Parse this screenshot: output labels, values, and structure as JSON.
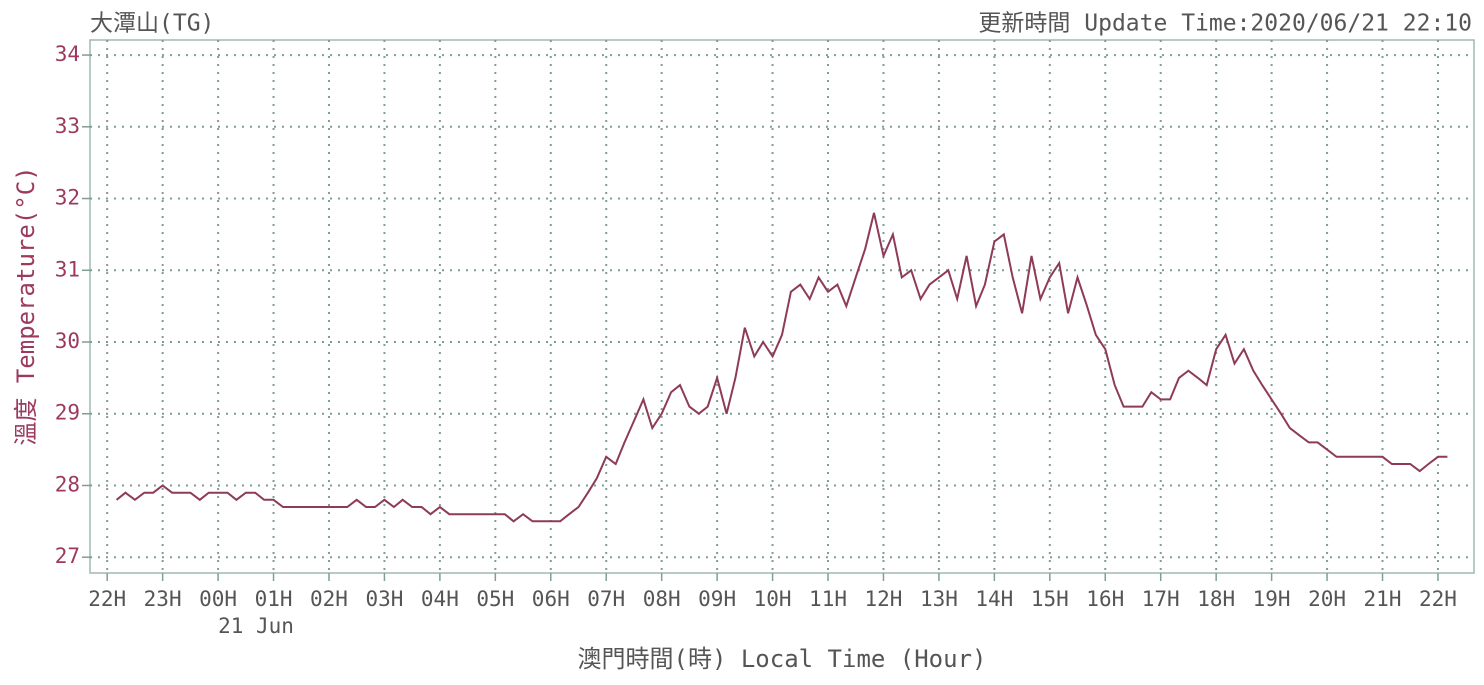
{
  "chart_data": {
    "type": "line",
    "title": "大潭山(TG)",
    "subtitle": "更新時間 Update Time:2020/06/21 22:10",
    "y_label": "溫度 Temperature(°C)",
    "x_label": "澳門時間(時) Local Time (Hour)",
    "annotation": {
      "text": "21 Jun",
      "x": 2
    },
    "xlim": [
      -0.31,
      24.65
    ],
    "xticks": [
      {
        "value": 0,
        "label": "22H"
      },
      {
        "value": 1,
        "label": "23H"
      },
      {
        "value": 2,
        "label": "00H"
      },
      {
        "value": 3,
        "label": "01H"
      },
      {
        "value": 4,
        "label": "02H"
      },
      {
        "value": 5,
        "label": "03H"
      },
      {
        "value": 6,
        "label": "04H"
      },
      {
        "value": 7,
        "label": "05H"
      },
      {
        "value": 8,
        "label": "06H"
      },
      {
        "value": 9,
        "label": "07H"
      },
      {
        "value": 10,
        "label": "08H"
      },
      {
        "value": 11,
        "label": "09H"
      },
      {
        "value": 12,
        "label": "10H"
      },
      {
        "value": 13,
        "label": "11H"
      },
      {
        "value": 14,
        "label": "12H"
      },
      {
        "value": 15,
        "label": "13H"
      },
      {
        "value": 16,
        "label": "14H"
      },
      {
        "value": 17,
        "label": "15H"
      },
      {
        "value": 18,
        "label": "16H"
      },
      {
        "value": 19,
        "label": "17H"
      },
      {
        "value": 20,
        "label": "18H"
      },
      {
        "value": 21,
        "label": "19H"
      },
      {
        "value": 22,
        "label": "20H"
      },
      {
        "value": 23,
        "label": "21H"
      },
      {
        "value": 24,
        "label": "22H"
      }
    ],
    "ylim": [
      26.78,
      34.21
    ],
    "yticks": [
      27,
      28,
      29,
      30,
      31,
      32,
      33,
      34
    ],
    "grid": true,
    "x": [
      0.17,
      0.33,
      0.5,
      0.67,
      0.83,
      1,
      1.17,
      1.33,
      1.5,
      1.67,
      1.83,
      2,
      2.17,
      2.33,
      2.5,
      2.67,
      2.83,
      3,
      3.17,
      3.33,
      3.5,
      3.67,
      3.83,
      4,
      4.17,
      4.33,
      4.5,
      4.67,
      4.83,
      5,
      5.17,
      5.33,
      5.5,
      5.67,
      5.83,
      6,
      6.17,
      6.33,
      6.5,
      6.67,
      6.83,
      7,
      7.17,
      7.33,
      7.5,
      7.67,
      7.83,
      8,
      8.17,
      8.33,
      8.5,
      8.67,
      8.83,
      9,
      9.17,
      9.33,
      9.5,
      9.67,
      9.83,
      10,
      10.17,
      10.33,
      10.5,
      10.67,
      10.83,
      11,
      11.17,
      11.33,
      11.5,
      11.67,
      11.83,
      12,
      12.17,
      12.33,
      12.5,
      12.67,
      12.83,
      13,
      13.17,
      13.33,
      13.5,
      13.67,
      13.83,
      14,
      14.17,
      14.33,
      14.5,
      14.67,
      14.83,
      15,
      15.17,
      15.33,
      15.5,
      15.67,
      15.83,
      16,
      16.17,
      16.33,
      16.5,
      16.67,
      16.83,
      17,
      17.17,
      17.33,
      17.5,
      17.67,
      17.83,
      18,
      18.17,
      18.33,
      18.5,
      18.67,
      18.83,
      19,
      19.17,
      19.33,
      19.5,
      19.67,
      19.83,
      20,
      20.17,
      20.33,
      20.5,
      20.67,
      20.83,
      21,
      21.17,
      21.33,
      21.5,
      21.67,
      21.83,
      22,
      22.17,
      22.33,
      22.5,
      22.67,
      22.83,
      23,
      23.17,
      23.33,
      23.5,
      23.67,
      23.83,
      24,
      24.17
    ],
    "series": [
      {
        "name": "Temperature",
        "color": "#8e3a59",
        "values": [
          27.8,
          27.9,
          27.8,
          27.9,
          27.9,
          28.0,
          27.9,
          27.9,
          27.9,
          27.8,
          27.9,
          27.9,
          27.9,
          27.8,
          27.9,
          27.9,
          27.8,
          27.8,
          27.7,
          27.7,
          27.7,
          27.7,
          27.7,
          27.7,
          27.7,
          27.7,
          27.8,
          27.7,
          27.7,
          27.8,
          27.7,
          27.8,
          27.7,
          27.7,
          27.6,
          27.7,
          27.6,
          27.6,
          27.6,
          27.6,
          27.6,
          27.6,
          27.6,
          27.5,
          27.6,
          27.5,
          27.5,
          27.5,
          27.5,
          27.6,
          27.7,
          27.9,
          28.1,
          28.4,
          28.3,
          28.6,
          28.9,
          29.2,
          28.8,
          29.0,
          29.3,
          29.4,
          29.1,
          29.0,
          29.1,
          29.5,
          29.0,
          29.5,
          30.2,
          29.8,
          30.0,
          29.8,
          30.1,
          30.7,
          30.8,
          30.6,
          30.9,
          30.7,
          30.8,
          30.5,
          30.9,
          31.3,
          31.8,
          31.2,
          31.5,
          30.9,
          31.0,
          30.6,
          30.8,
          30.9,
          31.0,
          30.6,
          31.2,
          30.5,
          30.8,
          31.4,
          31.5,
          30.9,
          30.4,
          31.2,
          30.6,
          30.9,
          31.1,
          30.4,
          30.9,
          30.5,
          30.1,
          29.9,
          29.4,
          29.1,
          29.1,
          29.1,
          29.3,
          29.2,
          29.2,
          29.5,
          29.6,
          29.5,
          29.4,
          29.9,
          30.1,
          29.7,
          29.9,
          29.6,
          29.4,
          29.2,
          29.0,
          28.8,
          28.7,
          28.6,
          28.6,
          28.5,
          28.4,
          28.4,
          28.4,
          28.4,
          28.4,
          28.4,
          28.3,
          28.3,
          28.3,
          28.2,
          28.3,
          28.4,
          28.4
        ]
      }
    ]
  }
}
